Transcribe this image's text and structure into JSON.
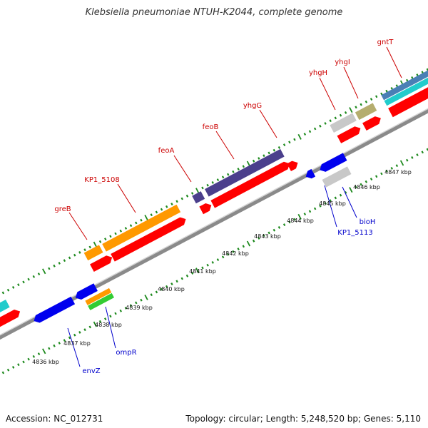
{
  "title": "Klebsiella pneumoniae NTUH-K2044, complete genome",
  "footer": {
    "accession": "Accession: NC_012731",
    "summary": "Topology: circular; Length: 5,248,520 bp; Genes: 5,110"
  },
  "colors": {
    "backbone": "#8a8a8a",
    "tick": "#1e8a1e",
    "cds": "#ff0000",
    "label_forward": "#cc0000",
    "label_reverse": "#0000cc",
    "gene_orange": "#ff9900",
    "gene_navy": "#4b3f8c",
    "gene_blue": "#0000ee",
    "gene_gray": "#c8c8c8",
    "gene_khaki": "#b5ad6e",
    "gene_cyan": "#22cccc",
    "gene_steel": "#4a7fb5",
    "gene_green": "#33cc33"
  },
  "scale_labels": [
    {
      "text": "4836 kbp"
    },
    {
      "text": "4837 kbp"
    },
    {
      "text": "4838 kbp"
    },
    {
      "text": "4839 kbp"
    },
    {
      "text": "4840 kbp"
    },
    {
      "text": "4841 kbp"
    },
    {
      "text": "4842 kbp"
    },
    {
      "text": "4843 kbp"
    },
    {
      "text": "4844 kbp"
    },
    {
      "text": "4845 kbp"
    },
    {
      "text": "4846 kbp"
    },
    {
      "text": "4847 kbp"
    }
  ],
  "forward_genes": [
    {
      "name": "greB"
    },
    {
      "name": "KP1_5108"
    },
    {
      "name": "feoA"
    },
    {
      "name": "feoB"
    },
    {
      "name": "yhgG"
    },
    {
      "name": "yhgH"
    },
    {
      "name": "yhgI"
    },
    {
      "name": "gntT"
    }
  ],
  "reverse_genes": [
    {
      "name": "envZ"
    },
    {
      "name": "ompR"
    },
    {
      "name": "KP1_5113"
    },
    {
      "name": "bioH"
    }
  ]
}
